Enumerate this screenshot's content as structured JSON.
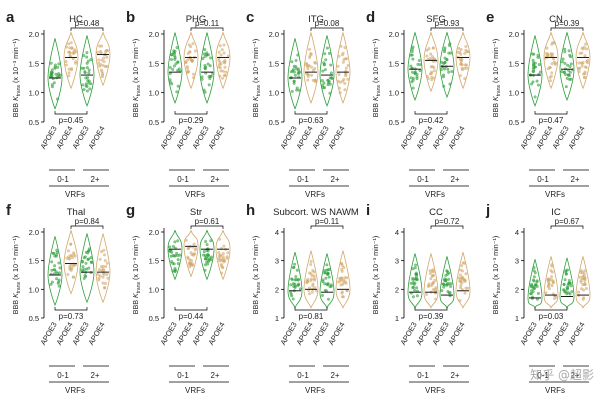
{
  "colors": {
    "apoe3": "#2e9e3a",
    "apoe4": "#d2a86b",
    "text": "#222222",
    "axis": "#000000"
  },
  "shared": {
    "categories": [
      "APOE3",
      "APOE4",
      "APOE3",
      "APOE4"
    ],
    "groups": [
      "0-1",
      "2+"
    ],
    "group_title": "VRFs",
    "ylabel_prefix": "BBB ",
    "ylabel_k": "K",
    "ylabel_sub": "trans",
    "ylabel_units": " (x 10⁻³ min⁻¹)"
  },
  "chart_data": [
    {
      "type": "violin",
      "letter": "a",
      "title": "HC",
      "yticks": [
        "0.5",
        "1.0",
        "1.5",
        "2.0"
      ],
      "ylim": [
        0.5,
        2.0
      ],
      "medians": [
        1.25,
        1.6,
        1.3,
        1.65
      ],
      "p_top": "p=0.48",
      "p_bottom": "p=0.45"
    },
    {
      "type": "violin",
      "letter": "b",
      "title": "PHG",
      "yticks": [
        "0.5",
        "1.0",
        "1.5",
        "2.0"
      ],
      "ylim": [
        0.5,
        2.0
      ],
      "medians": [
        1.35,
        1.6,
        1.35,
        1.6
      ],
      "p_top": "p=0.11",
      "p_bottom": "p=0.29"
    },
    {
      "type": "violin",
      "letter": "c",
      "title": "ITG",
      "yticks": [
        "0.5",
        "1.0",
        "1.5",
        "2.0"
      ],
      "ylim": [
        0.5,
        2.0
      ],
      "medians": [
        1.25,
        1.35,
        1.3,
        1.35
      ],
      "p_top": "p=0.08",
      "p_bottom": "p=0.63"
    },
    {
      "type": "violin",
      "letter": "d",
      "title": "SFG",
      "yticks": [
        "0.5",
        "1.0",
        "1.5",
        "2.0"
      ],
      "ylim": [
        0.5,
        2.0
      ],
      "medians": [
        1.4,
        1.55,
        1.45,
        1.6
      ],
      "p_top": "p=0.93",
      "p_bottom": "p=0.42"
    },
    {
      "type": "violin",
      "letter": "e",
      "title": "CN",
      "yticks": [
        "0.5",
        "1.0",
        "1.5",
        "2.0"
      ],
      "ylim": [
        0.5,
        2.0
      ],
      "medians": [
        1.3,
        1.6,
        1.4,
        1.6
      ],
      "p_top": "p=0.39",
      "p_bottom": "p=0.47"
    },
    {
      "type": "violin",
      "letter": "f",
      "title": "Thal",
      "yticks": [
        "0.5",
        "1.0",
        "1.5",
        "2.0"
      ],
      "ylim": [
        0.5,
        2.0
      ],
      "medians": [
        1.25,
        1.45,
        1.3,
        1.3
      ],
      "p_top": "p=0.84",
      "p_bottom": "p=0.73"
    },
    {
      "type": "violin",
      "letter": "g",
      "title": "Str",
      "yticks": [
        "0.5",
        "1.0",
        "1.5",
        "2.0"
      ],
      "ylim": [
        0.5,
        2.0
      ],
      "medians": [
        1.7,
        1.75,
        1.7,
        1.7
      ],
      "p_top": "p=0.61",
      "p_bottom": "p=0.44"
    },
    {
      "type": "violin",
      "letter": "h",
      "title": "Subcort. WS NAWM",
      "yticks": [
        "1",
        "2",
        "3",
        "4"
      ],
      "ylim": [
        1,
        4
      ],
      "medians": [
        1.95,
        2.0,
        1.9,
        2.0
      ],
      "p_top": "p=0.11",
      "p_bottom": "p=0.81"
    },
    {
      "type": "violin",
      "letter": "i",
      "title": "CC",
      "yticks": [
        "1",
        "2",
        "3",
        "4"
      ],
      "ylim": [
        1,
        4
      ],
      "medians": [
        1.9,
        1.9,
        1.8,
        1.95
      ],
      "p_top": "p=0.72",
      "p_bottom": "p=0.39"
    },
    {
      "type": "violin",
      "letter": "j",
      "title": "IC",
      "yticks": [
        "1",
        "2",
        "3",
        "4"
      ],
      "ylim": [
        1,
        4
      ],
      "medians": [
        1.7,
        1.8,
        1.75,
        1.8
      ],
      "p_top": "p=0.67",
      "p_bottom": "p=0.03"
    }
  ],
  "watermark": "知乎 @超影"
}
